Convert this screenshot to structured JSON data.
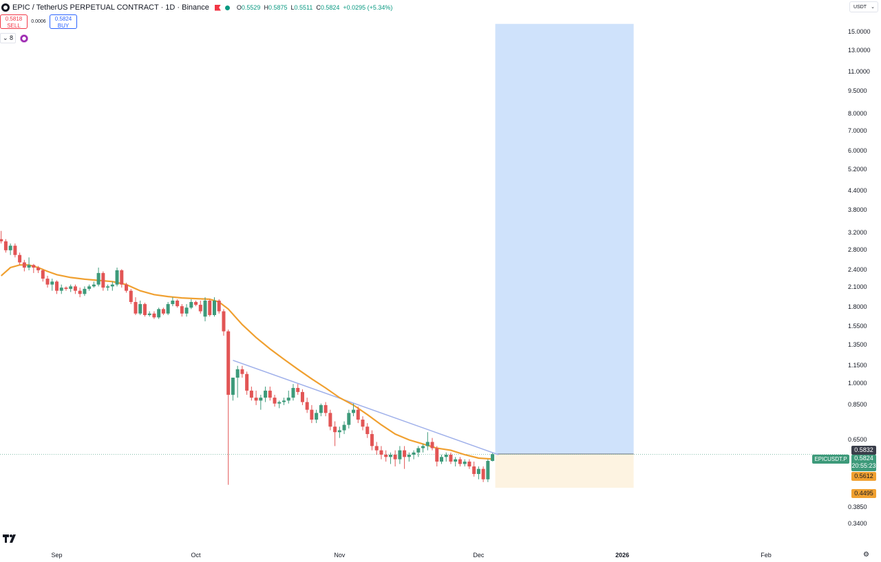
{
  "header": {
    "title": "EPIC / TetherUS PERPETUAL CONTRACT · 1D · Binance",
    "ohlc": [
      {
        "k": "O",
        "v": "0.5529"
      },
      {
        "k": "H",
        "v": "0.5875"
      },
      {
        "k": "L",
        "v": "0.5511"
      },
      {
        "k": "C",
        "v": "0.5824"
      },
      {
        "k": "",
        "v": "+0.0295 (+5.34%)"
      }
    ]
  },
  "trade": {
    "sell_price": "0.5818",
    "sell_label": "SELL",
    "spread": "0.0006",
    "buy_price": "0.5824",
    "buy_label": "BUY"
  },
  "indicators": {
    "count": "8"
  },
  "currency": "USDT",
  "symbol_tag": "EPICUSDT.P",
  "price_labels": {
    "upper": "0.5832",
    "last": "0.5824",
    "countdown": "20:55:23",
    "ma": "0.5612",
    "lower": "0.4495"
  },
  "colors": {
    "up": "#3d9a7a",
    "down": "#e25555",
    "ma": "#f0a030",
    "trendline": "#9fb0ea",
    "target_zone": "#cfe2fb",
    "stop_zone": "#fdf3e1"
  },
  "chart_data": {
    "type": "candlestick",
    "scale": "log",
    "ylim": [
      0.32,
      16.0
    ],
    "y_ticks": [
      15.0,
      13.0,
      11.0,
      9.5,
      8.0,
      7.0,
      6.0,
      5.2,
      4.4,
      3.8,
      3.2,
      2.8,
      2.4,
      2.1,
      1.8,
      1.55,
      1.35,
      1.15,
      1.0,
      0.85,
      0.65,
      0.385,
      0.34
    ],
    "y_tick_labels": [
      "15.0000",
      "13.0000",
      "11.0000",
      "9.5000",
      "8.0000",
      "7.0000",
      "6.0000",
      "5.2000",
      "4.4000",
      "3.8000",
      "3.2000",
      "2.8000",
      "2.4000",
      "2.1000",
      "1.8000",
      "1.5500",
      "1.3500",
      "1.1500",
      "1.0000",
      "0.8500",
      "0.6500",
      "0.3850",
      "0.3400"
    ],
    "x_ticks": [
      {
        "label": "Sep",
        "day": 0
      },
      {
        "label": "Oct",
        "day": 30
      },
      {
        "label": "Nov",
        "day": 61
      },
      {
        "label": "Dec",
        "day": 91
      },
      {
        "label": "2026",
        "day": 122,
        "year": true
      },
      {
        "label": "Feb",
        "day": 153
      }
    ],
    "candles": [
      {
        "day": -12,
        "o": 3.05,
        "h": 3.25,
        "l": 2.95,
        "c": 3.0
      },
      {
        "day": -11,
        "o": 3.0,
        "h": 3.05,
        "l": 2.75,
        "c": 2.8
      },
      {
        "day": -10,
        "o": 2.8,
        "h": 2.95,
        "l": 2.7,
        "c": 2.9
      },
      {
        "day": -9,
        "o": 2.9,
        "h": 2.95,
        "l": 2.65,
        "c": 2.7
      },
      {
        "day": -8,
        "o": 2.7,
        "h": 2.75,
        "l": 2.5,
        "c": 2.55
      },
      {
        "day": -7,
        "o": 2.55,
        "h": 2.6,
        "l": 2.38,
        "c": 2.45
      },
      {
        "day": -6,
        "o": 2.45,
        "h": 2.65,
        "l": 2.4,
        "c": 2.5
      },
      {
        "day": -5,
        "o": 2.5,
        "h": 2.52,
        "l": 2.35,
        "c": 2.45
      },
      {
        "day": -4,
        "o": 2.45,
        "h": 2.48,
        "l": 2.35,
        "c": 2.4
      },
      {
        "day": -3,
        "o": 2.4,
        "h": 2.42,
        "l": 2.2,
        "c": 2.25
      },
      {
        "day": -2,
        "o": 2.25,
        "h": 2.3,
        "l": 2.1,
        "c": 2.15
      },
      {
        "day": -1,
        "o": 2.15,
        "h": 2.25,
        "l": 2.05,
        "c": 2.2
      },
      {
        "day": 0,
        "o": 2.2,
        "h": 2.22,
        "l": 2.0,
        "c": 2.05
      },
      {
        "day": 1,
        "o": 2.05,
        "h": 2.15,
        "l": 2.0,
        "c": 2.1
      },
      {
        "day": 2,
        "o": 2.1,
        "h": 2.12,
        "l": 2.05,
        "c": 2.08
      },
      {
        "day": 3,
        "o": 2.08,
        "h": 2.15,
        "l": 2.03,
        "c": 2.12
      },
      {
        "day": 4,
        "o": 2.12,
        "h": 2.15,
        "l": 2.0,
        "c": 2.05
      },
      {
        "day": 5,
        "o": 2.05,
        "h": 2.1,
        "l": 1.95,
        "c": 2.0
      },
      {
        "day": 6,
        "o": 2.0,
        "h": 2.12,
        "l": 1.97,
        "c": 2.08
      },
      {
        "day": 7,
        "o": 2.08,
        "h": 2.15,
        "l": 2.05,
        "c": 2.12
      },
      {
        "day": 8,
        "o": 2.12,
        "h": 2.2,
        "l": 2.1,
        "c": 2.15
      },
      {
        "day": 9,
        "o": 2.15,
        "h": 2.45,
        "l": 2.12,
        "c": 2.35
      },
      {
        "day": 10,
        "o": 2.35,
        "h": 2.38,
        "l": 2.05,
        "c": 2.1
      },
      {
        "day": 11,
        "o": 2.1,
        "h": 2.15,
        "l": 2.05,
        "c": 2.12
      },
      {
        "day": 12,
        "o": 2.12,
        "h": 2.2,
        "l": 2.05,
        "c": 2.15
      },
      {
        "day": 13,
        "o": 2.15,
        "h": 2.45,
        "l": 2.12,
        "c": 2.4
      },
      {
        "day": 14,
        "o": 2.4,
        "h": 2.42,
        "l": 2.1,
        "c": 2.15
      },
      {
        "day": 15,
        "o": 2.15,
        "h": 2.18,
        "l": 2.02,
        "c": 2.05
      },
      {
        "day": 16,
        "o": 2.05,
        "h": 2.08,
        "l": 1.85,
        "c": 1.88
      },
      {
        "day": 17,
        "o": 1.88,
        "h": 1.95,
        "l": 1.7,
        "c": 1.72
      },
      {
        "day": 18,
        "o": 1.72,
        "h": 1.9,
        "l": 1.7,
        "c": 1.85
      },
      {
        "day": 19,
        "o": 1.85,
        "h": 1.87,
        "l": 1.68,
        "c": 1.7
      },
      {
        "day": 20,
        "o": 1.7,
        "h": 1.75,
        "l": 1.68,
        "c": 1.72
      },
      {
        "day": 21,
        "o": 1.72,
        "h": 1.75,
        "l": 1.65,
        "c": 1.67
      },
      {
        "day": 22,
        "o": 1.67,
        "h": 1.8,
        "l": 1.65,
        "c": 1.78
      },
      {
        "day": 23,
        "o": 1.78,
        "h": 1.8,
        "l": 1.7,
        "c": 1.72
      },
      {
        "day": 24,
        "o": 1.72,
        "h": 1.88,
        "l": 1.7,
        "c": 1.85
      },
      {
        "day": 25,
        "o": 1.85,
        "h": 1.95,
        "l": 1.82,
        "c": 1.9
      },
      {
        "day": 26,
        "o": 1.9,
        "h": 1.92,
        "l": 1.8,
        "c": 1.82
      },
      {
        "day": 27,
        "o": 1.82,
        "h": 1.85,
        "l": 1.68,
        "c": 1.72
      },
      {
        "day": 28,
        "o": 1.72,
        "h": 1.85,
        "l": 1.68,
        "c": 1.8
      },
      {
        "day": 29,
        "o": 1.8,
        "h": 1.92,
        "l": 1.78,
        "c": 1.88
      },
      {
        "day": 30,
        "o": 1.88,
        "h": 1.9,
        "l": 1.82,
        "c": 1.84
      },
      {
        "day": 31,
        "o": 1.84,
        "h": 1.9,
        "l": 1.72,
        "c": 1.75
      },
      {
        "day": 32,
        "o": 1.68,
        "h": 1.95,
        "l": 1.62,
        "c": 1.9
      },
      {
        "day": 33,
        "o": 1.9,
        "h": 1.92,
        "l": 1.68,
        "c": 1.7
      },
      {
        "day": 34,
        "o": 1.7,
        "h": 1.95,
        "l": 1.68,
        "c": 1.9
      },
      {
        "day": 35,
        "o": 1.9,
        "h": 1.92,
        "l": 1.72,
        "c": 1.75
      },
      {
        "day": 36,
        "o": 1.75,
        "h": 1.78,
        "l": 1.45,
        "c": 1.5
      },
      {
        "day": 37,
        "o": 1.5,
        "h": 1.52,
        "l": 0.46,
        "c": 0.92
      },
      {
        "day": 38,
        "o": 0.92,
        "h": 1.05,
        "l": 0.88,
        "c": 1.05
      },
      {
        "day": 39,
        "o": 1.05,
        "h": 1.15,
        "l": 0.9,
        "c": 1.12
      },
      {
        "day": 40,
        "o": 1.12,
        "h": 1.15,
        "l": 1.05,
        "c": 1.08
      },
      {
        "day": 41,
        "o": 1.08,
        "h": 1.1,
        "l": 0.92,
        "c": 0.95
      },
      {
        "day": 42,
        "o": 0.95,
        "h": 0.98,
        "l": 0.88,
        "c": 0.9
      },
      {
        "day": 43,
        "o": 0.9,
        "h": 0.95,
        "l": 0.85,
        "c": 0.88
      },
      {
        "day": 44,
        "o": 0.88,
        "h": 0.92,
        "l": 0.82,
        "c": 0.9
      },
      {
        "day": 45,
        "o": 0.9,
        "h": 0.98,
        "l": 0.87,
        "c": 0.95
      },
      {
        "day": 46,
        "o": 0.95,
        "h": 0.98,
        "l": 0.88,
        "c": 0.9
      },
      {
        "day": 47,
        "o": 0.9,
        "h": 0.92,
        "l": 0.84,
        "c": 0.86
      },
      {
        "day": 48,
        "o": 0.86,
        "h": 0.88,
        "l": 0.83,
        "c": 0.87
      },
      {
        "day": 49,
        "o": 0.87,
        "h": 0.9,
        "l": 0.85,
        "c": 0.88
      },
      {
        "day": 50,
        "o": 0.88,
        "h": 0.95,
        "l": 0.86,
        "c": 0.9
      },
      {
        "day": 51,
        "o": 0.9,
        "h": 1.0,
        "l": 0.88,
        "c": 0.97
      },
      {
        "day": 52,
        "o": 0.97,
        "h": 1.0,
        "l": 0.92,
        "c": 0.94
      },
      {
        "day": 53,
        "o": 0.94,
        "h": 0.96,
        "l": 0.85,
        "c": 0.87
      },
      {
        "day": 54,
        "o": 0.87,
        "h": 0.9,
        "l": 0.8,
        "c": 0.82
      },
      {
        "day": 55,
        "o": 0.82,
        "h": 0.85,
        "l": 0.74,
        "c": 0.76
      },
      {
        "day": 56,
        "o": 0.76,
        "h": 0.82,
        "l": 0.74,
        "c": 0.8
      },
      {
        "day": 57,
        "o": 0.8,
        "h": 0.86,
        "l": 0.78,
        "c": 0.85
      },
      {
        "day": 58,
        "o": 0.85,
        "h": 0.87,
        "l": 0.78,
        "c": 0.8
      },
      {
        "day": 59,
        "o": 0.8,
        "h": 0.82,
        "l": 0.7,
        "c": 0.72
      },
      {
        "day": 60,
        "o": 0.72,
        "h": 0.75,
        "l": 0.62,
        "c": 0.69
      },
      {
        "day": 61,
        "o": 0.69,
        "h": 0.72,
        "l": 0.66,
        "c": 0.7
      },
      {
        "day": 62,
        "o": 0.7,
        "h": 0.75,
        "l": 0.68,
        "c": 0.73
      },
      {
        "day": 63,
        "o": 0.73,
        "h": 0.82,
        "l": 0.71,
        "c": 0.8
      },
      {
        "day": 64,
        "o": 0.8,
        "h": 0.86,
        "l": 0.78,
        "c": 0.82
      },
      {
        "day": 65,
        "o": 0.82,
        "h": 0.84,
        "l": 0.74,
        "c": 0.76
      },
      {
        "day": 66,
        "o": 0.76,
        "h": 0.78,
        "l": 0.7,
        "c": 0.72
      },
      {
        "day": 67,
        "o": 0.72,
        "h": 0.74,
        "l": 0.66,
        "c": 0.68
      },
      {
        "day": 68,
        "o": 0.68,
        "h": 0.7,
        "l": 0.6,
        "c": 0.62
      },
      {
        "day": 69,
        "o": 0.62,
        "h": 0.64,
        "l": 0.58,
        "c": 0.6
      },
      {
        "day": 70,
        "o": 0.6,
        "h": 0.62,
        "l": 0.56,
        "c": 0.58
      },
      {
        "day": 71,
        "o": 0.58,
        "h": 0.6,
        "l": 0.55,
        "c": 0.57
      },
      {
        "day": 72,
        "o": 0.57,
        "h": 0.59,
        "l": 0.54,
        "c": 0.58
      },
      {
        "day": 73,
        "o": 0.58,
        "h": 0.6,
        "l": 0.53,
        "c": 0.56
      },
      {
        "day": 74,
        "o": 0.56,
        "h": 0.62,
        "l": 0.54,
        "c": 0.6
      },
      {
        "day": 75,
        "o": 0.6,
        "h": 0.62,
        "l": 0.52,
        "c": 0.57
      },
      {
        "day": 76,
        "o": 0.57,
        "h": 0.59,
        "l": 0.55,
        "c": 0.58
      },
      {
        "day": 77,
        "o": 0.58,
        "h": 0.6,
        "l": 0.56,
        "c": 0.59
      },
      {
        "day": 78,
        "o": 0.59,
        "h": 0.62,
        "l": 0.57,
        "c": 0.61
      },
      {
        "day": 79,
        "o": 0.61,
        "h": 0.63,
        "l": 0.59,
        "c": 0.62
      },
      {
        "day": 80,
        "o": 0.62,
        "h": 0.69,
        "l": 0.6,
        "c": 0.64
      },
      {
        "day": 81,
        "o": 0.64,
        "h": 0.66,
        "l": 0.6,
        "c": 0.61
      },
      {
        "day": 82,
        "o": 0.61,
        "h": 0.62,
        "l": 0.53,
        "c": 0.55
      },
      {
        "day": 83,
        "o": 0.55,
        "h": 0.58,
        "l": 0.54,
        "c": 0.57
      },
      {
        "day": 84,
        "o": 0.57,
        "h": 0.59,
        "l": 0.55,
        "c": 0.58
      },
      {
        "day": 85,
        "o": 0.58,
        "h": 0.59,
        "l": 0.54,
        "c": 0.55
      },
      {
        "day": 86,
        "o": 0.55,
        "h": 0.57,
        "l": 0.53,
        "c": 0.56
      },
      {
        "day": 87,
        "o": 0.56,
        "h": 0.57,
        "l": 0.53,
        "c": 0.54
      },
      {
        "day": 88,
        "o": 0.54,
        "h": 0.56,
        "l": 0.53,
        "c": 0.55
      },
      {
        "day": 89,
        "o": 0.55,
        "h": 0.56,
        "l": 0.52,
        "c": 0.53
      },
      {
        "day": 90,
        "o": 0.53,
        "h": 0.55,
        "l": 0.49,
        "c": 0.5
      },
      {
        "day": 91,
        "o": 0.5,
        "h": 0.53,
        "l": 0.48,
        "c": 0.52
      },
      {
        "day": 92,
        "o": 0.52,
        "h": 0.53,
        "l": 0.47,
        "c": 0.48
      },
      {
        "day": 93,
        "o": 0.48,
        "h": 0.56,
        "l": 0.47,
        "c": 0.553
      },
      {
        "day": 94,
        "o": 0.5529,
        "h": 0.5875,
        "l": 0.5511,
        "c": 0.5824
      }
    ],
    "ma": [
      {
        "day": -12,
        "v": 2.3
      },
      {
        "day": -10,
        "v": 2.45
      },
      {
        "day": -8,
        "v": 2.5
      },
      {
        "day": -6,
        "v": 2.5
      },
      {
        "day": -4,
        "v": 2.45
      },
      {
        "day": -2,
        "v": 2.38
      },
      {
        "day": 0,
        "v": 2.32
      },
      {
        "day": 3,
        "v": 2.27
      },
      {
        "day": 6,
        "v": 2.24
      },
      {
        "day": 9,
        "v": 2.22
      },
      {
        "day": 12,
        "v": 2.2
      },
      {
        "day": 15,
        "v": 2.15
      },
      {
        "day": 18,
        "v": 2.05
      },
      {
        "day": 21,
        "v": 1.99
      },
      {
        "day": 24,
        "v": 1.96
      },
      {
        "day": 27,
        "v": 1.94
      },
      {
        "day": 30,
        "v": 1.93
      },
      {
        "day": 33,
        "v": 1.92
      },
      {
        "day": 35,
        "v": 1.88
      },
      {
        "day": 37,
        "v": 1.78
      },
      {
        "day": 40,
        "v": 1.58
      },
      {
        "day": 43,
        "v": 1.43
      },
      {
        "day": 46,
        "v": 1.31
      },
      {
        "day": 49,
        "v": 1.21
      },
      {
        "day": 52,
        "v": 1.12
      },
      {
        "day": 55,
        "v": 1.04
      },
      {
        "day": 58,
        "v": 0.97
      },
      {
        "day": 61,
        "v": 0.9
      },
      {
        "day": 64,
        "v": 0.85
      },
      {
        "day": 67,
        "v": 0.79
      },
      {
        "day": 70,
        "v": 0.73
      },
      {
        "day": 73,
        "v": 0.68
      },
      {
        "day": 76,
        "v": 0.65
      },
      {
        "day": 79,
        "v": 0.63
      },
      {
        "day": 82,
        "v": 0.61
      },
      {
        "day": 85,
        "v": 0.6
      },
      {
        "day": 88,
        "v": 0.58
      },
      {
        "day": 91,
        "v": 0.565
      },
      {
        "day": 94,
        "v": 0.5612
      }
    ],
    "trendline": {
      "from": {
        "day": 38,
        "v": 1.2
      },
      "to": {
        "day": 95,
        "v": 0.58
      }
    },
    "position": {
      "start_day": 94,
      "end_day": 124,
      "entry": 0.5832,
      "target": 16.0,
      "stop": 0.4495
    },
    "last_price": 0.5824
  }
}
